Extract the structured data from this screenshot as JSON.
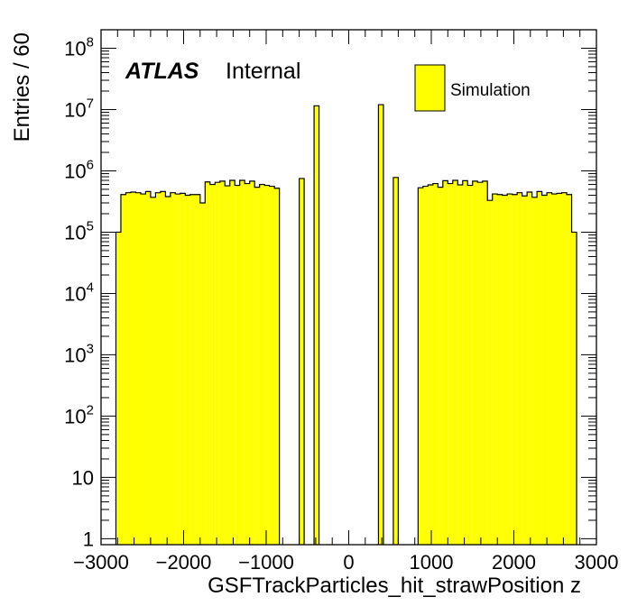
{
  "chart_data": {
    "type": "bar",
    "histogram": true,
    "log_y": true,
    "xlabel": "GSFTrackParticles_hit_strawPosition z",
    "ylabel": "Entries / 60",
    "xlim": [
      -3000,
      3000
    ],
    "ylim": [
      0.8,
      200000000
    ],
    "x_ticks": [
      {
        "value": -3000,
        "label": "−3000"
      },
      {
        "value": -2000,
        "label": "−2000"
      },
      {
        "value": -1000,
        "label": "−1000"
      },
      {
        "value": 0,
        "label": "0"
      },
      {
        "value": 1000,
        "label": "1000"
      },
      {
        "value": 2000,
        "label": "2000"
      },
      {
        "value": 3000,
        "label": "3000"
      }
    ],
    "y_ticks": [
      {
        "value": 1,
        "base": "1",
        "exp": ""
      },
      {
        "value": 10,
        "base": "10",
        "exp": ""
      },
      {
        "value": 100,
        "base": "10",
        "exp": "2"
      },
      {
        "value": 1000,
        "base": "10",
        "exp": "3"
      },
      {
        "value": 10000,
        "base": "10",
        "exp": "4"
      },
      {
        "value": 100000,
        "base": "10",
        "exp": "5"
      },
      {
        "value": 1000000,
        "base": "10",
        "exp": "6"
      },
      {
        "value": 10000000,
        "base": "10",
        "exp": "7"
      },
      {
        "value": 100000000,
        "base": "10",
        "exp": "8"
      }
    ],
    "bin_width": 60,
    "bins": [
      {
        "x0": -2820,
        "value": 100000
      },
      {
        "x0": -2760,
        "value": 410000
      },
      {
        "x0": -2700,
        "value": 440000
      },
      {
        "x0": -2640,
        "value": 450000
      },
      {
        "x0": -2580,
        "value": 440000
      },
      {
        "x0": -2520,
        "value": 420000
      },
      {
        "x0": -2460,
        "value": 460000
      },
      {
        "x0": -2400,
        "value": 370000
      },
      {
        "x0": -2340,
        "value": 440000
      },
      {
        "x0": -2280,
        "value": 460000
      },
      {
        "x0": -2220,
        "value": 380000
      },
      {
        "x0": -2160,
        "value": 440000
      },
      {
        "x0": -2100,
        "value": 420000
      },
      {
        "x0": -2040,
        "value": 430000
      },
      {
        "x0": -1980,
        "value": 400000
      },
      {
        "x0": -1920,
        "value": 410000
      },
      {
        "x0": -1860,
        "value": 410000
      },
      {
        "x0": -1800,
        "value": 300000
      },
      {
        "x0": -1740,
        "value": 660000
      },
      {
        "x0": -1680,
        "value": 600000
      },
      {
        "x0": -1620,
        "value": 650000
      },
      {
        "x0": -1560,
        "value": 680000
      },
      {
        "x0": -1500,
        "value": 570000
      },
      {
        "x0": -1440,
        "value": 700000
      },
      {
        "x0": -1380,
        "value": 580000
      },
      {
        "x0": -1320,
        "value": 700000
      },
      {
        "x0": -1260,
        "value": 620000
      },
      {
        "x0": -1200,
        "value": 680000
      },
      {
        "x0": -1140,
        "value": 540000
      },
      {
        "x0": -1080,
        "value": 600000
      },
      {
        "x0": -1020,
        "value": 580000
      },
      {
        "x0": -960,
        "value": 560000
      },
      {
        "x0": -900,
        "value": 520000
      },
      {
        "x0": -600,
        "value": 750000
      },
      {
        "x0": -420,
        "value": 11500000
      },
      {
        "x0": 360,
        "value": 12000000
      },
      {
        "x0": 540,
        "value": 780000
      },
      {
        "x0": 840,
        "value": 530000
      },
      {
        "x0": 900,
        "value": 560000
      },
      {
        "x0": 960,
        "value": 590000
      },
      {
        "x0": 1020,
        "value": 620000
      },
      {
        "x0": 1080,
        "value": 540000
      },
      {
        "x0": 1140,
        "value": 690000
      },
      {
        "x0": 1200,
        "value": 620000
      },
      {
        "x0": 1260,
        "value": 700000
      },
      {
        "x0": 1320,
        "value": 590000
      },
      {
        "x0": 1380,
        "value": 690000
      },
      {
        "x0": 1440,
        "value": 580000
      },
      {
        "x0": 1500,
        "value": 680000
      },
      {
        "x0": 1560,
        "value": 650000
      },
      {
        "x0": 1620,
        "value": 680000
      },
      {
        "x0": 1680,
        "value": 330000
      },
      {
        "x0": 1740,
        "value": 420000
      },
      {
        "x0": 1800,
        "value": 410000
      },
      {
        "x0": 1860,
        "value": 400000
      },
      {
        "x0": 1920,
        "value": 420000
      },
      {
        "x0": 1980,
        "value": 410000
      },
      {
        "x0": 2040,
        "value": 440000
      },
      {
        "x0": 2100,
        "value": 390000
      },
      {
        "x0": 2160,
        "value": 450000
      },
      {
        "x0": 2220,
        "value": 370000
      },
      {
        "x0": 2280,
        "value": 460000
      },
      {
        "x0": 2340,
        "value": 400000
      },
      {
        "x0": 2400,
        "value": 440000
      },
      {
        "x0": 2460,
        "value": 420000
      },
      {
        "x0": 2520,
        "value": 430000
      },
      {
        "x0": 2580,
        "value": 440000
      },
      {
        "x0": 2640,
        "value": 410000
      },
      {
        "x0": 2700,
        "value": 100000
      }
    ],
    "fill_color": "#ffff00",
    "edge_color": "#000000",
    "legend": {
      "entries": [
        "Simulation"
      ],
      "position": "top-right"
    },
    "annotation": {
      "bold": "ATLAS",
      "text": "Internal"
    }
  }
}
